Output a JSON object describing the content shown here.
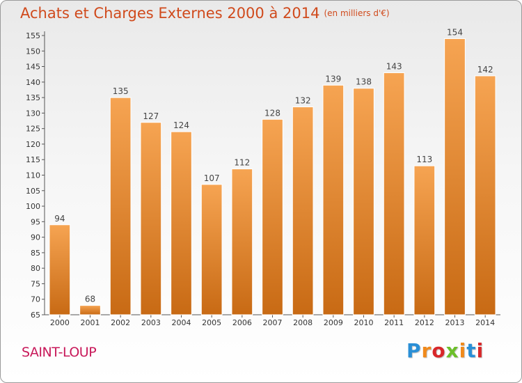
{
  "header": {
    "title": "Achats et Charges Externes 2000 à 2014",
    "subtitle": "(en milliers d'€)"
  },
  "footer": {
    "place": "SAINT-LOUP",
    "logo": "Proxiti",
    "logo_colors": [
      "#2a8fd6",
      "#f08a1c",
      "#d8282a",
      "#6cbf2a",
      "#f08a1c",
      "#2a8fd6",
      "#d8282a"
    ]
  },
  "colors": {
    "title": "#d04a1c",
    "place": "#c8195a",
    "bar_light": "#f6a452",
    "bar_dark": "#c86a14"
  },
  "chart_data": {
    "type": "bar",
    "title": "Achats et Charges Externes 2000 à 2014",
    "xlabel": "",
    "ylabel": "",
    "categories": [
      "2000",
      "2001",
      "2002",
      "2003",
      "2004",
      "2005",
      "2006",
      "2007",
      "2008",
      "2009",
      "2010",
      "2011",
      "2012",
      "2013",
      "2014"
    ],
    "values": [
      94,
      68,
      135,
      127,
      124,
      107,
      112,
      128,
      132,
      139,
      138,
      143,
      113,
      154,
      142
    ],
    "ylim": [
      65,
      155
    ],
    "yticks": [
      65,
      70,
      75,
      80,
      85,
      90,
      95,
      100,
      105,
      110,
      115,
      120,
      125,
      130,
      135,
      140,
      145,
      150,
      155
    ],
    "grid": false,
    "legend": "none",
    "data_labels": true
  }
}
